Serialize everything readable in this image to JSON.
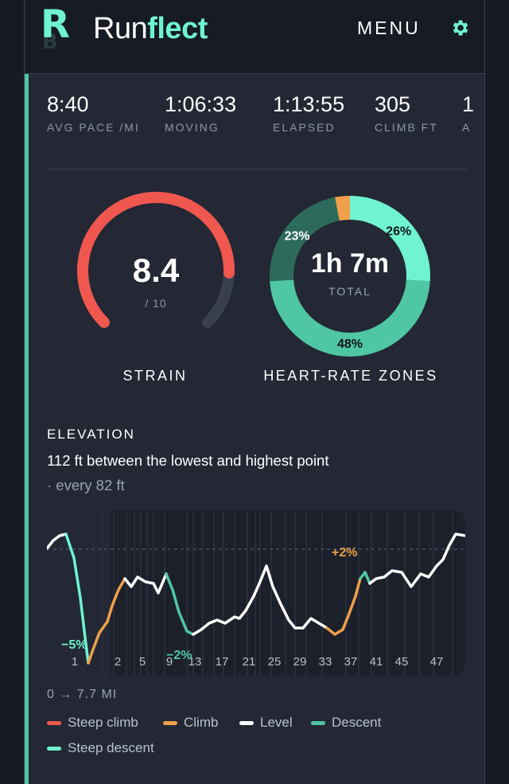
{
  "header": {
    "logo_letter": "R",
    "logo_letter2": "B",
    "brand_prefix": "Run",
    "brand_suffix": "flect",
    "menu_label": "MENU",
    "settings_icon": "gear-icon"
  },
  "stats": [
    {
      "value": "8:40",
      "label": "AVG PACE /MI"
    },
    {
      "value": "1:06:33",
      "label": "MOVING"
    },
    {
      "value": "1:13:55",
      "label": "ELAPSED"
    },
    {
      "value": "305",
      "label": "CLIMB FT"
    },
    {
      "value": "1",
      "label": "A"
    }
  ],
  "strain": {
    "value": "8.4",
    "max_text": "/ 10",
    "value_num": 8.4,
    "max_num": 10,
    "label": "STRAIN",
    "color": "#f0574f",
    "track_color": "#3a3f4c"
  },
  "hr_zones": {
    "label": "HEART-RATE ZONES",
    "total": "1h 7m",
    "total_label": "TOTAL",
    "segments": [
      {
        "pct": 26,
        "label": "26%",
        "color": "#6ff3d0"
      },
      {
        "pct": 48,
        "label": "48%",
        "color": "#4fc7a4"
      },
      {
        "pct": 23,
        "label": "23%",
        "color": "#2d6a5b"
      },
      {
        "pct": 3,
        "label": "",
        "color": "#f0a04b"
      }
    ]
  },
  "elevation": {
    "title": "ELEVATION",
    "subtitle": "112 ft between the lowest and highest point",
    "note": "· every 82 ft",
    "range_text": "0 →  7.7 MI",
    "grades": [
      {
        "text": "−5%",
        "color": "#6ff3d0"
      },
      {
        "text": "−2%",
        "color": "#4fc7a4"
      },
      {
        "text": "+2%",
        "color": "#f0a04b"
      }
    ],
    "markers": [
      "1",
      "2",
      "5",
      "9",
      "13",
      "17",
      "21",
      "25",
      "29",
      "33",
      "37",
      "41",
      "45",
      "47"
    ]
  },
  "legend": [
    {
      "label": "Steep climb",
      "color": "#f0574f"
    },
    {
      "label": "Climb",
      "color": "#f0a04b"
    },
    {
      "label": "Level",
      "color": "#ffffff"
    },
    {
      "label": "Descent",
      "color": "#4fc7a4"
    },
    {
      "label": "Steep descent",
      "color": "#6ff3d0"
    }
  ],
  "colors": {
    "accent": "#6ff3d0",
    "background": "#232834"
  }
}
